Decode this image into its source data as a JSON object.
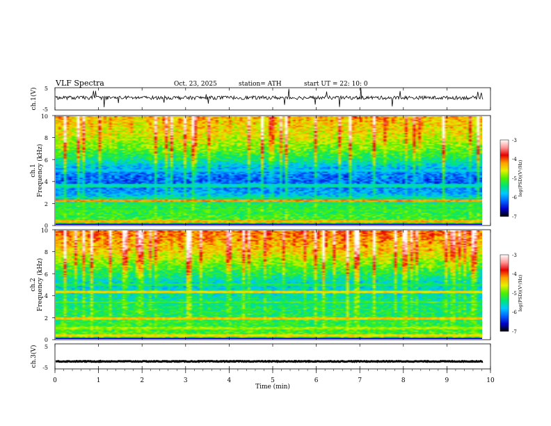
{
  "header": {
    "title": "VLF  Spectra",
    "date": "Oct. 23, 2025",
    "station": "station= ATH",
    "start": "start  UT  =    22: 10: 0"
  },
  "chart_data": {
    "type": "heatmap",
    "title": "VLF  Spectra",
    "xlabel": "Time  (min)",
    "xlim": [
      0,
      10
    ],
    "x_ticks": [
      "0",
      "1",
      "2",
      "3",
      "4",
      "5",
      "6",
      "7",
      "8",
      "9",
      "10"
    ],
    "waveforms": [
      {
        "name": "ch.1",
        "ylabel": "ch.1(V)",
        "ylim": [
          -5,
          5
        ],
        "y_ticks": [
          "5",
          "-5"
        ],
        "mean": 0.5,
        "amplitude": 1.6
      },
      {
        "name": "ch.3",
        "ylabel": "ch.3(V)",
        "ylim": [
          -5,
          5
        ],
        "y_ticks": [
          "5",
          "-5"
        ],
        "mean": -2.0,
        "amplitude": 0.3
      }
    ],
    "spectrograms": [
      {
        "name": "ch.1",
        "ylabel_channel": "ch.1",
        "ylabel": "Frequency  (kHz)",
        "ylim": [
          0,
          10
        ],
        "y_ticks": [
          "0",
          "2",
          "4",
          "6",
          "8",
          "10"
        ],
        "bands_khz": [
          {
            "f": 0.3,
            "level": -4.3
          },
          {
            "f": 1.3,
            "level": -5.2
          },
          {
            "f": 1.8,
            "level": -5.3
          },
          {
            "f": 2.25,
            "level": -4.2
          },
          {
            "f": 2.5,
            "level": -5.4
          },
          {
            "f": 3.5,
            "level": -5.5
          },
          {
            "f": 3.7,
            "level": -5.6
          },
          {
            "f": 5.0,
            "level": -5.8
          }
        ],
        "background_profile": [
          {
            "f": 0,
            "level": -5.0
          },
          {
            "f": 2,
            "level": -5.4
          },
          {
            "f": 3,
            "level": -6.0
          },
          {
            "f": 4,
            "level": -6.3
          },
          {
            "f": 5,
            "level": -6.1
          },
          {
            "f": 6,
            "level": -5.5
          },
          {
            "f": 7,
            "level": -5.1
          },
          {
            "f": 8,
            "level": -4.8
          },
          {
            "f": 10,
            "level": -4.5
          }
        ]
      },
      {
        "name": "ch.2",
        "ylabel_channel": "ch.2",
        "ylabel": "Frequency  (kHz)",
        "ylim": [
          0,
          10
        ],
        "y_ticks": [
          "0",
          "2",
          "4",
          "6",
          "8",
          "10"
        ],
        "bands_khz": [
          {
            "f": 0.35,
            "level": -4.5
          },
          {
            "f": 1.0,
            "level": -4.8
          },
          {
            "f": 1.9,
            "level": -4.4
          },
          {
            "f": 3.4,
            "level": -5.0
          },
          {
            "f": 4.3,
            "level": -4.5
          },
          {
            "f": 5.0,
            "level": -5.3
          }
        ],
        "background_profile": [
          {
            "f": 0,
            "level": -5.0
          },
          {
            "f": 2,
            "level": -5.3
          },
          {
            "f": 3,
            "level": -5.4
          },
          {
            "f": 4,
            "level": -5.6
          },
          {
            "f": 5,
            "level": -5.8
          },
          {
            "f": 6,
            "level": -5.4
          },
          {
            "f": 7,
            "level": -5.0
          },
          {
            "f": 8,
            "level": -4.6
          },
          {
            "f": 10,
            "level": -4.2
          }
        ]
      }
    ],
    "colorbar": {
      "label": "log(PSD)(V²/Hz)",
      "range": [
        -7,
        -3
      ],
      "ticks": [
        "-3",
        "-4",
        "-5",
        "-6",
        "-7"
      ],
      "colors": [
        "#000000",
        "#0000c8",
        "#0064ff",
        "#00c8ff",
        "#00e678",
        "#50f000",
        "#e6f000",
        "#ffa000",
        "#e60000",
        "#ff9696",
        "#ffffff"
      ]
    }
  }
}
